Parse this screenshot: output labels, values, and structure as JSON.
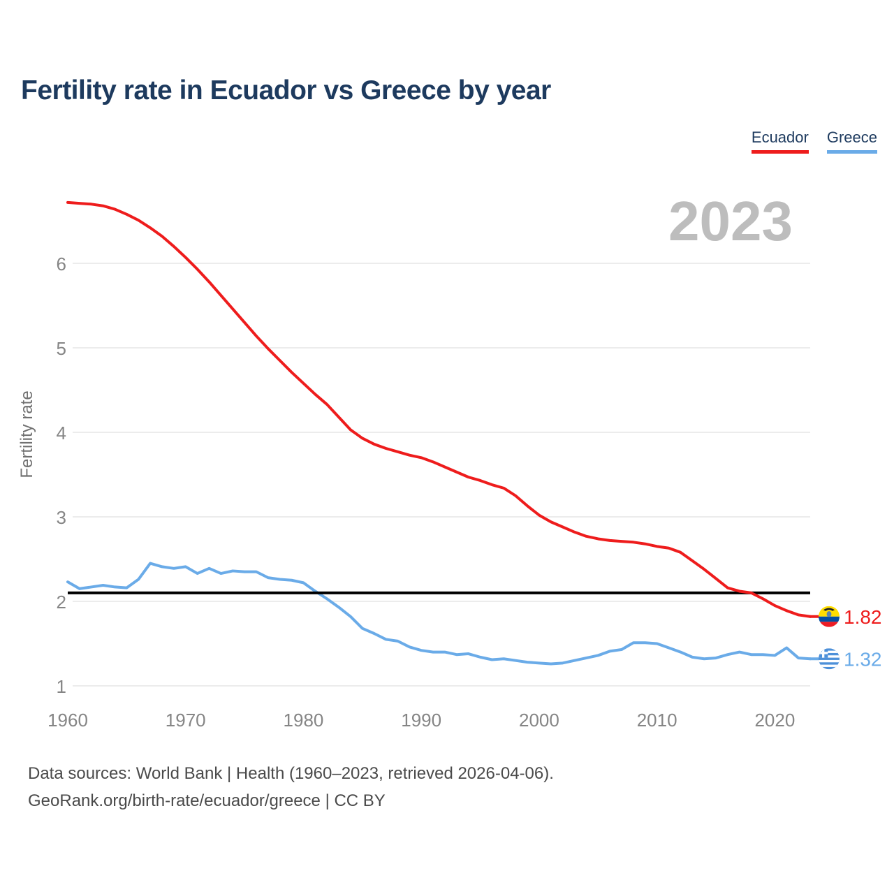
{
  "page": {
    "title": "Fertility rate in Ecuador vs Greece by year"
  },
  "legend": {
    "items": [
      {
        "label": "Ecuador",
        "color": "#ee1c1c"
      },
      {
        "label": "Greece",
        "color": "#6aabe8"
      }
    ]
  },
  "footer": {
    "line1": "Data sources: World Bank | Health (1960–2023, retrieved 2026-04-06).",
    "line2": "GeoRank.org/birth-rate/ecuador/greece | CC BY"
  },
  "colors": {
    "ecuador": "#ee1c1c",
    "greece": "#6aabe8",
    "title_text": "#1d3a5e",
    "axis_text": "#858585",
    "watermark": "#bdbdbd",
    "gridline": "#ececec",
    "replacement_line": "#000000",
    "footer_text": "#4a4a4a"
  },
  "chart_data": {
    "type": "line",
    "title": "Fertility rate in Ecuador vs Greece by year",
    "xlabel": "",
    "ylabel": "Fertility rate",
    "watermark": "2023",
    "grid": true,
    "legend_position": "top-right",
    "xlim": [
      1960,
      2023
    ],
    "ylim": [
      0.85,
      6.95
    ],
    "yticks": [
      1,
      2,
      3,
      4,
      5,
      6
    ],
    "xticks": [
      1960,
      1970,
      1980,
      1990,
      2000,
      2010,
      2020
    ],
    "replacement_level_line": 2.1,
    "x": [
      1960,
      1961,
      1962,
      1963,
      1964,
      1965,
      1966,
      1967,
      1968,
      1969,
      1970,
      1971,
      1972,
      1973,
      1974,
      1975,
      1976,
      1977,
      1978,
      1979,
      1980,
      1981,
      1982,
      1983,
      1984,
      1985,
      1986,
      1987,
      1988,
      1989,
      1990,
      1991,
      1992,
      1993,
      1994,
      1995,
      1996,
      1997,
      1998,
      1999,
      2000,
      2001,
      2002,
      2003,
      2004,
      2005,
      2006,
      2007,
      2008,
      2009,
      2010,
      2011,
      2012,
      2013,
      2014,
      2015,
      2016,
      2017,
      2018,
      2019,
      2020,
      2021,
      2022,
      2023
    ],
    "series": [
      {
        "name": "Ecuador",
        "color": "#ee1c1c",
        "end_label": "1.82",
        "end_value": 1.82,
        "values": [
          6.72,
          6.71,
          6.7,
          6.68,
          6.64,
          6.58,
          6.51,
          6.42,
          6.32,
          6.2,
          6.07,
          5.93,
          5.78,
          5.62,
          5.46,
          5.3,
          5.14,
          4.99,
          4.85,
          4.71,
          4.58,
          4.45,
          4.33,
          4.18,
          4.03,
          3.93,
          3.86,
          3.81,
          3.77,
          3.73,
          3.7,
          3.65,
          3.59,
          3.53,
          3.47,
          3.43,
          3.38,
          3.34,
          3.25,
          3.13,
          3.02,
          2.94,
          2.88,
          2.82,
          2.77,
          2.74,
          2.72,
          2.71,
          2.7,
          2.68,
          2.65,
          2.63,
          2.58,
          2.48,
          2.38,
          2.27,
          2.16,
          2.12,
          2.1,
          2.03,
          1.95,
          1.89,
          1.84,
          1.82
        ]
      },
      {
        "name": "Greece",
        "color": "#6aabe8",
        "end_label": "1.32",
        "end_value": 1.32,
        "values": [
          2.23,
          2.15,
          2.17,
          2.19,
          2.17,
          2.16,
          2.26,
          2.45,
          2.41,
          2.39,
          2.41,
          2.33,
          2.39,
          2.33,
          2.36,
          2.35,
          2.35,
          2.28,
          2.26,
          2.25,
          2.22,
          2.12,
          2.03,
          1.93,
          1.82,
          1.68,
          1.62,
          1.55,
          1.53,
          1.46,
          1.42,
          1.4,
          1.4,
          1.37,
          1.38,
          1.34,
          1.31,
          1.32,
          1.3,
          1.28,
          1.27,
          1.26,
          1.27,
          1.3,
          1.33,
          1.36,
          1.41,
          1.43,
          1.51,
          1.51,
          1.5,
          1.45,
          1.4,
          1.34,
          1.32,
          1.33,
          1.37,
          1.4,
          1.37,
          1.37,
          1.36,
          1.45,
          1.33,
          1.32
        ]
      }
    ]
  }
}
